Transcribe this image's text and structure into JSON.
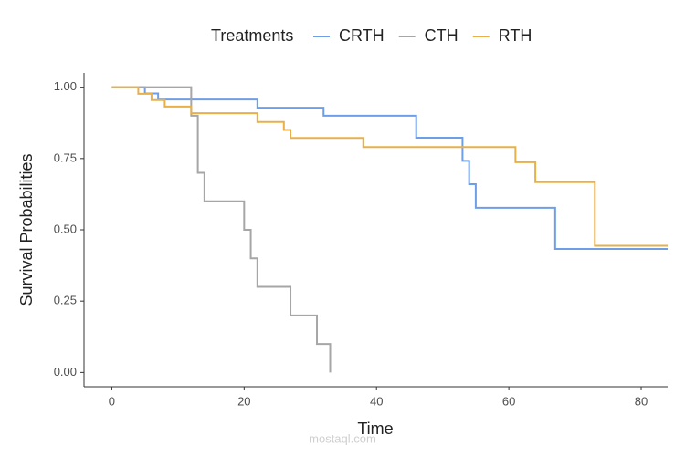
{
  "chart_data": {
    "type": "line",
    "step": "post",
    "legend_title": "Treatments",
    "legend_position": "top",
    "x_label": "Time",
    "y_label": "Survival Probabilities",
    "watermark": "mostaql.com",
    "xlim": [
      -4.2,
      84
    ],
    "ylim": [
      -0.05,
      1.05
    ],
    "xticks": [
      0,
      20,
      40,
      60,
      80
    ],
    "yticks": [
      {
        "value": 0,
        "label": "0.00"
      },
      {
        "value": 0.25,
        "label": "0.25"
      },
      {
        "value": 0.5,
        "label": "0.50"
      },
      {
        "value": 0.75,
        "label": "0.75"
      },
      {
        "value": 1,
        "label": "1.00"
      }
    ],
    "grid": false,
    "series": [
      {
        "name": "CRTH",
        "color": "#6f9ee8",
        "x": [
          0,
          5,
          7,
          22,
          32,
          46,
          53,
          54,
          55,
          67,
          84
        ],
        "values": [
          1.0,
          0.978,
          0.957,
          0.928,
          0.9,
          0.823,
          0.742,
          0.66,
          0.577,
          0.433,
          0.433
        ]
      },
      {
        "name": "CTH",
        "color": "#a6a6a6",
        "x": [
          0,
          12,
          13,
          14,
          20,
          21,
          22,
          27,
          31,
          33
        ],
        "values": [
          1.0,
          0.9,
          0.7,
          0.6,
          0.5,
          0.4,
          0.3,
          0.2,
          0.1,
          0.0
        ]
      },
      {
        "name": "RTH",
        "color": "#e8b04a",
        "x": [
          0,
          4,
          6,
          8,
          12,
          22,
          26,
          27,
          38,
          61,
          64,
          73,
          84
        ],
        "values": [
          1.0,
          0.977,
          0.955,
          0.932,
          0.909,
          0.878,
          0.85,
          0.822,
          0.79,
          0.737,
          0.667,
          0.444,
          0.444
        ]
      }
    ]
  }
}
